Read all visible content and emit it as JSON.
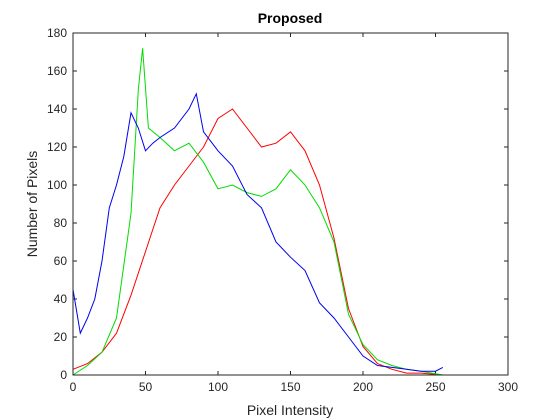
{
  "chart_data": {
    "type": "line",
    "title": "Proposed",
    "xlabel": "Pixel Intensity",
    "ylabel": "Number of Pixels",
    "xlim": [
      0,
      300
    ],
    "ylim": [
      0,
      180
    ],
    "xticks": [
      0,
      50,
      100,
      150,
      200,
      250,
      300
    ],
    "yticks": [
      0,
      20,
      40,
      60,
      80,
      100,
      120,
      140,
      160,
      180
    ],
    "grid": false,
    "legend": "none",
    "series": [
      {
        "color": "#ff0000",
        "x": [
          0,
          10,
          20,
          30,
          40,
          50,
          60,
          70,
          80,
          90,
          100,
          110,
          120,
          130,
          140,
          150,
          160,
          170,
          180,
          190,
          200,
          210,
          220,
          230,
          240,
          255
        ],
        "y": [
          3,
          6,
          12,
          22,
          42,
          65,
          88,
          100,
          110,
          120,
          135,
          140,
          130,
          120,
          122,
          128,
          118,
          100,
          72,
          35,
          15,
          6,
          3,
          1,
          1,
          0
        ]
      },
      {
        "color": "#00dd00",
        "x": [
          0,
          10,
          20,
          30,
          40,
          45,
          48,
          52,
          60,
          70,
          80,
          90,
          100,
          110,
          120,
          130,
          140,
          150,
          160,
          170,
          180,
          190,
          200,
          210,
          220,
          230,
          240,
          255
        ],
        "y": [
          0,
          5,
          12,
          30,
          85,
          150,
          172,
          130,
          125,
          118,
          122,
          112,
          98,
          100,
          96,
          94,
          98,
          108,
          100,
          88,
          70,
          32,
          16,
          8,
          5,
          3,
          2,
          0
        ]
      },
      {
        "color": "#0000ee",
        "x": [
          0,
          5,
          10,
          15,
          20,
          25,
          30,
          35,
          40,
          45,
          50,
          55,
          60,
          70,
          80,
          85,
          90,
          100,
          110,
          120,
          130,
          140,
          150,
          160,
          170,
          180,
          190,
          200,
          210,
          220,
          230,
          240,
          250,
          255
        ],
        "y": [
          45,
          22,
          30,
          40,
          60,
          88,
          100,
          115,
          138,
          130,
          118,
          122,
          125,
          130,
          140,
          148,
          128,
          118,
          110,
          95,
          88,
          70,
          62,
          55,
          38,
          30,
          20,
          10,
          5,
          4,
          3,
          2,
          2,
          4
        ]
      }
    ]
  }
}
